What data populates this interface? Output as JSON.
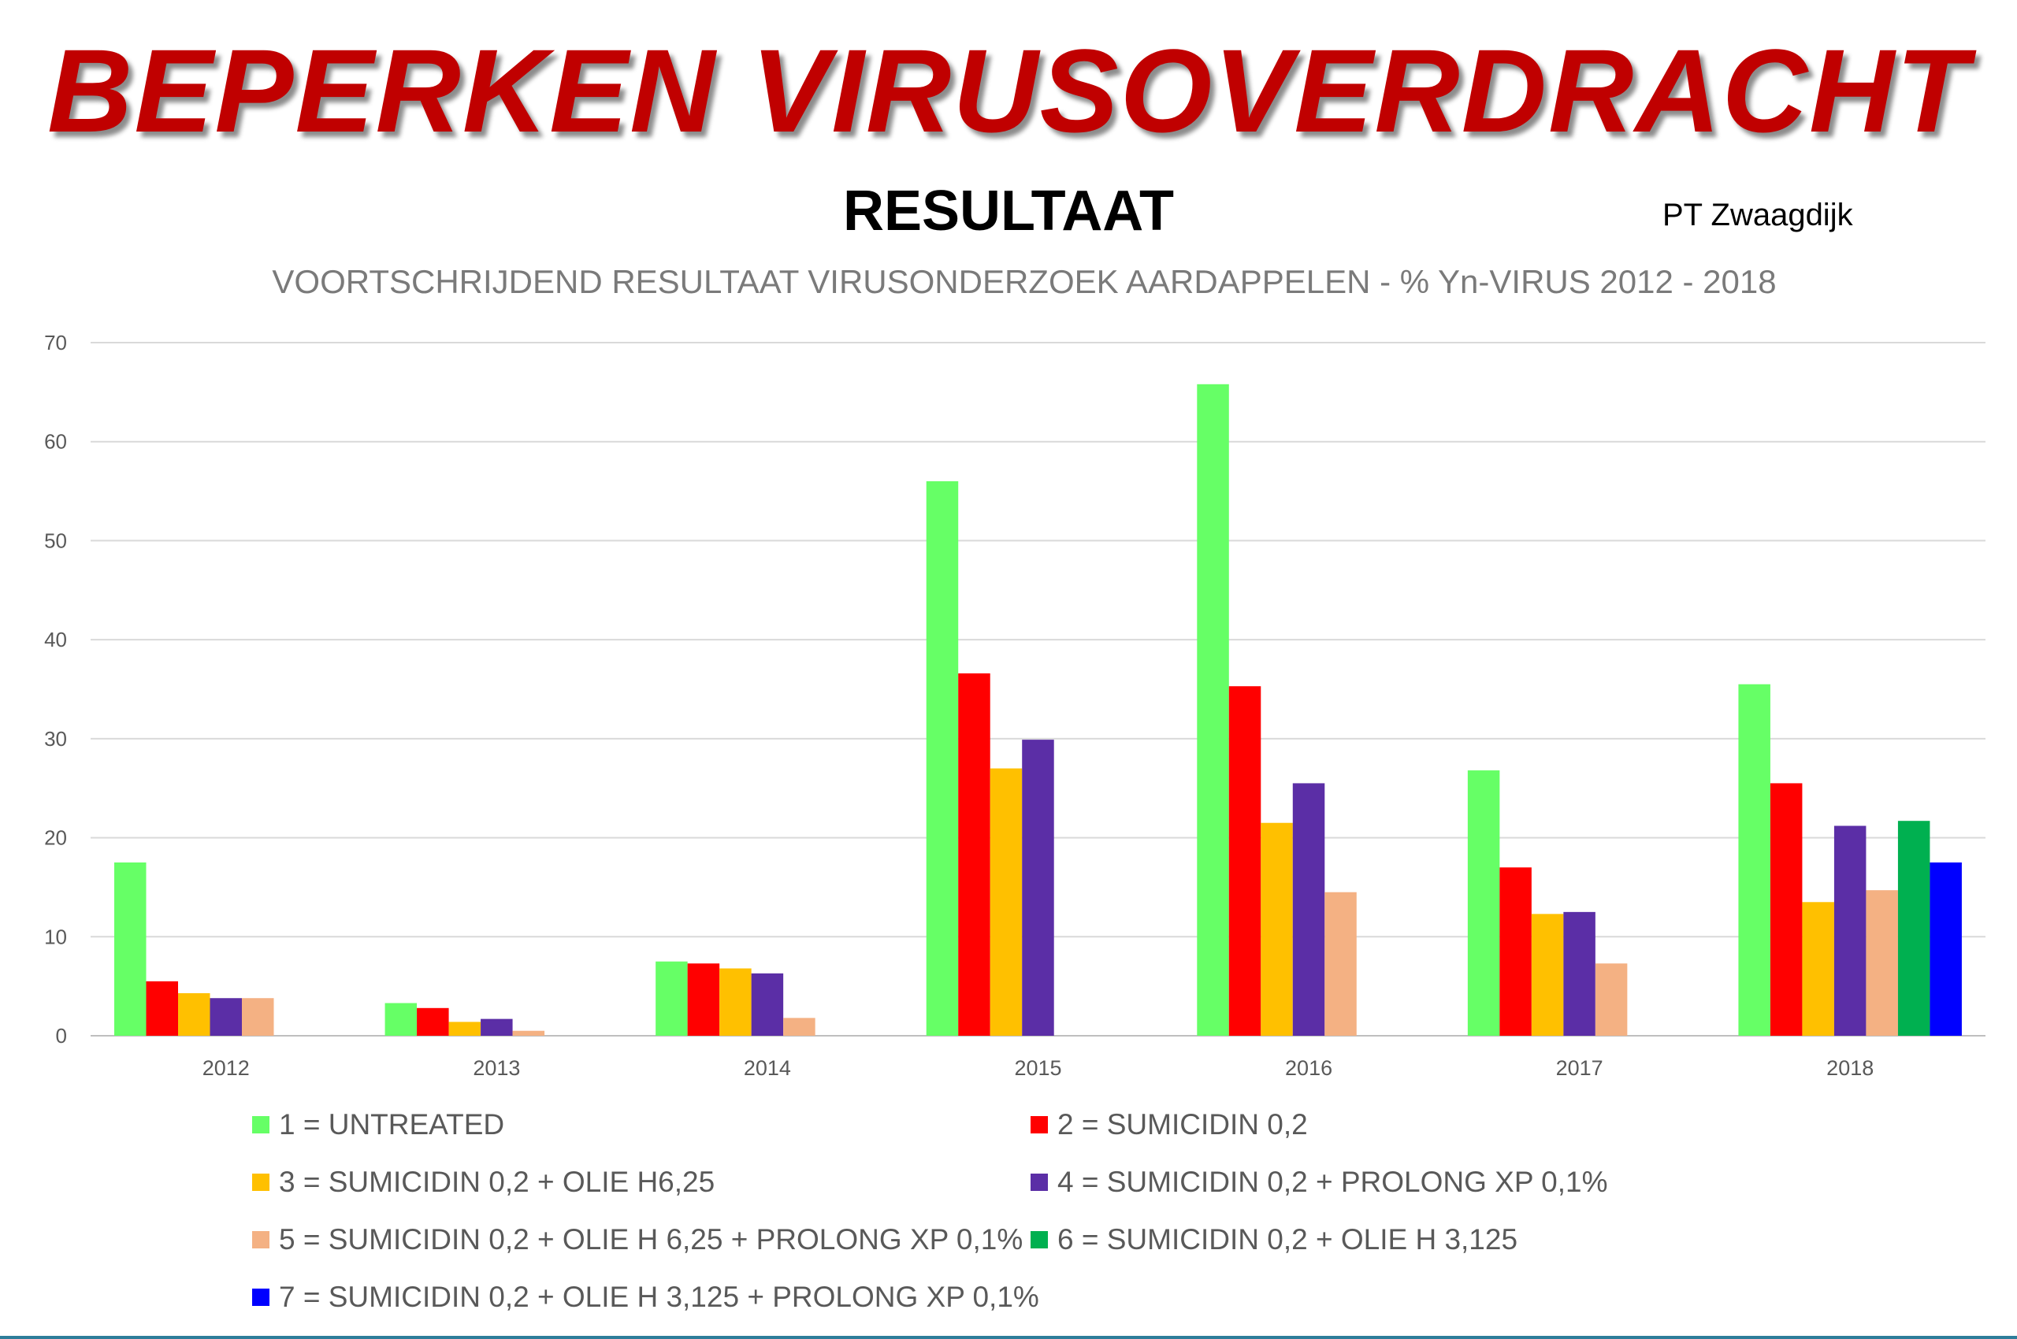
{
  "header": {
    "title": "BEPERKEN VIRUSOVERDRACHT",
    "subtitle": "RESULTAAT",
    "author": "PT Zwaagdijk"
  },
  "chart_data": {
    "type": "bar",
    "title": "VOORTSCHRIJDEND RESULTAAT VIRUSONDERZOEK AARDAPPELEN - % Yn-VIRUS 2012 - 2018",
    "xlabel": "",
    "ylabel": "",
    "ylim": [
      0,
      70
    ],
    "yticks": [
      "0",
      "10",
      "20",
      "30",
      "40",
      "50",
      "60",
      "70"
    ],
    "grid": true,
    "legend_position": "bottom",
    "categories": [
      "2012",
      "2013",
      "2014",
      "2015",
      "2016",
      "2017",
      "2018"
    ],
    "series": [
      {
        "name": "1 = UNTREATED",
        "color": "#66ff66",
        "values": [
          17.5,
          3.3,
          7.5,
          56,
          65.8,
          26.8,
          35.5
        ]
      },
      {
        "name": "2 = SUMICIDIN 0,2",
        "color": "#ff0000",
        "values": [
          5.5,
          2.8,
          7.3,
          36.6,
          35.3,
          17,
          25.5
        ]
      },
      {
        "name": "3 = SUMICIDIN 0,2 + OLIE H6,25",
        "color": "#ffc000",
        "values": [
          4.3,
          1.4,
          6.8,
          27,
          21.5,
          12.3,
          13.5
        ]
      },
      {
        "name": "4 = SUMICIDIN 0,2 + PROLONG XP 0,1%",
        "color": "#5b2ea6",
        "values": [
          3.8,
          1.7,
          6.3,
          29.9,
          25.5,
          12.5,
          21.2
        ]
      },
      {
        "name": "5 = SUMICIDIN 0,2 + OLIE H 6,25 + PROLONG XP 0,1%",
        "color": "#f4b183",
        "values": [
          3.8,
          0.5,
          1.8,
          null,
          14.5,
          7.3,
          14.7
        ]
      },
      {
        "name": "6 = SUMICIDIN 0,2 + OLIE H 3,125",
        "color": "#00b050",
        "values": [
          null,
          null,
          null,
          null,
          null,
          null,
          21.7
        ]
      },
      {
        "name": "7 = SUMICIDIN 0,2 + OLIE H 3,125 + PROLONG XP 0,1%",
        "color": "#0000ff",
        "values": [
          null,
          null,
          null,
          null,
          null,
          null,
          17.5
        ]
      }
    ]
  }
}
